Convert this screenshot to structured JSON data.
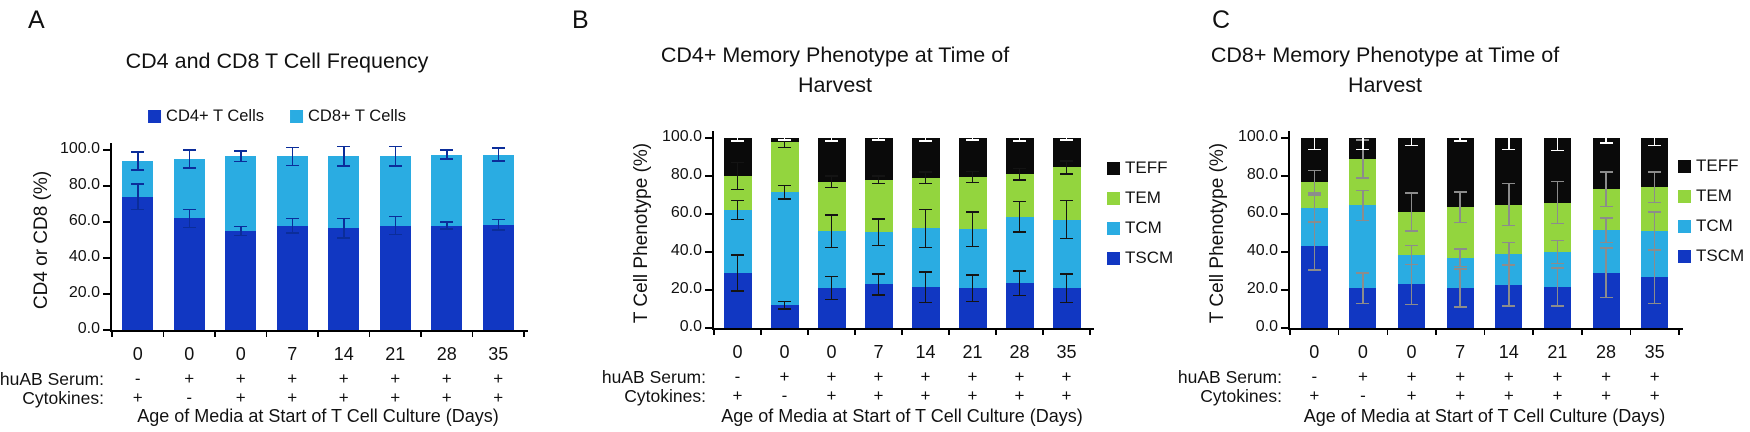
{
  "page": {
    "background": "#ffffff"
  },
  "chart_data": [
    {
      "type": "bar",
      "stacked": true,
      "panel_label": "A",
      "title": "CD4 and CD8 T Cell Frequency",
      "ylabel": "CD4 or CD8 (%)",
      "xlabel": "Age of Media at Start of T Cell Culture (Days)",
      "ylim": [
        0,
        100
      ],
      "ytick_labels": [
        "0.0",
        "20.0",
        "40.0",
        "60.0",
        "80.0",
        "100.0"
      ],
      "categories": [
        "0",
        "0",
        "0",
        "7",
        "14",
        "21",
        "28",
        "35"
      ],
      "condition_rows": [
        {
          "label": "huAB Serum:",
          "values": [
            "-",
            "+",
            "+",
            "+",
            "+",
            "+",
            "+",
            "+"
          ]
        },
        {
          "label": "Cytokines:",
          "values": [
            "+",
            "-",
            "+",
            "+",
            "+",
            "+",
            "+",
            "+"
          ]
        }
      ],
      "legend": {
        "position": "top",
        "entries": [
          {
            "label": "CD4+ T Cells",
            "color": "#1137c2"
          },
          {
            "label": "CD8+ T Cells",
            "color": "#2aace2"
          }
        ]
      },
      "series": [
        {
          "name": "CD4+ T Cells",
          "color": "#1137c2",
          "error_color": "#0b2d9a",
          "values": [
            74,
            62,
            55,
            58,
            56.5,
            58,
            58,
            58.5
          ],
          "errors": [
            7,
            5,
            2.5,
            4,
            5.5,
            5,
            2,
            3
          ]
        },
        {
          "name": "CD8+ T Cells",
          "color": "#2aace2",
          "error_color": "#0b2d9a",
          "values": [
            20,
            33,
            41.5,
            38.5,
            40,
            38.5,
            39.5,
            39
          ],
          "errors": [
            5,
            5,
            3,
            5,
            5.5,
            5.5,
            2.5,
            3.5
          ]
        }
      ]
    },
    {
      "type": "bar",
      "stacked": true,
      "panel_label": "B",
      "title": "CD4+ Memory Phenotype at Time of Harvest",
      "ylabel": "T Cell Phenotype (%)",
      "xlabel": "Age of Media at Start of T Cell Culture (Days)",
      "ylim": [
        0,
        100
      ],
      "ytick_labels": [
        "0.0",
        "20.0",
        "40.0",
        "60.0",
        "80.0",
        "100.0"
      ],
      "categories": [
        "0",
        "0",
        "0",
        "7",
        "14",
        "21",
        "28",
        "35"
      ],
      "condition_rows": [
        {
          "label": "huAB Serum:",
          "values": [
            "-",
            "+",
            "+",
            "+",
            "+",
            "+",
            "+",
            "+"
          ]
        },
        {
          "label": "Cytokines:",
          "values": [
            "+",
            "-",
            "+",
            "+",
            "+",
            "+",
            "+",
            "+"
          ]
        }
      ],
      "legend": {
        "position": "right",
        "entries": [
          {
            "label": "TEFF",
            "color": "#0a0a0a"
          },
          {
            "label": "TEM",
            "color": "#93d53e"
          },
          {
            "label": "TCM",
            "color": "#2aace2"
          },
          {
            "label": "TSCM",
            "color": "#1137c2"
          }
        ]
      },
      "series": [
        {
          "name": "TSCM",
          "color": "#1137c2",
          "error_color": "#141414",
          "values": [
            29,
            12,
            21,
            23,
            21.5,
            21,
            23.5,
            21
          ],
          "errors": [
            9.5,
            2,
            6,
            5.5,
            8,
            7,
            6.5,
            7.5
          ]
        },
        {
          "name": "TCM",
          "color": "#2aace2",
          "error_color": "#141414",
          "values": [
            33,
            59.5,
            30,
            27.5,
            31,
            31,
            35,
            36
          ],
          "errors": [
            5,
            3.5,
            8.5,
            7,
            10,
            9,
            8,
            10
          ]
        },
        {
          "name": "TEM",
          "color": "#93d53e",
          "error_color": "#141414",
          "values": [
            18,
            26.5,
            26,
            27.5,
            26.5,
            27.5,
            22.5,
            27.5
          ],
          "errors": [
            7,
            3,
            3,
            2,
            3,
            3,
            3,
            3.5
          ]
        },
        {
          "name": "TEFF",
          "color": "#0a0a0a",
          "error_color": "#ffffff",
          "values": [
            20,
            2,
            23,
            22,
            21,
            20.5,
            19,
            15.5
          ],
          "errors": [
            1.5,
            1,
            1.5,
            1,
            1.5,
            1,
            1.5,
            1
          ]
        }
      ]
    },
    {
      "type": "bar",
      "stacked": true,
      "panel_label": "C",
      "title": "CD8+ Memory Phenotype at Time of Harvest",
      "ylabel": "T Cell Phenotype (%)",
      "xlabel": "Age of Media at Start of T Cell Culture (Days)",
      "ylim": [
        0,
        100
      ],
      "ytick_labels": [
        "0.0",
        "20.0",
        "40.0",
        "60.0",
        "80.0",
        "100.0"
      ],
      "categories": [
        "0",
        "0",
        "0",
        "7",
        "14",
        "21",
        "28",
        "35"
      ],
      "condition_rows": [
        {
          "label": "huAB Serum:",
          "values": [
            "-",
            "+",
            "+",
            "+",
            "+",
            "+",
            "+",
            "+"
          ]
        },
        {
          "label": "Cytokines:",
          "values": [
            "+",
            "-",
            "+",
            "+",
            "+",
            "+",
            "+",
            "+"
          ]
        }
      ],
      "legend": {
        "position": "right",
        "entries": [
          {
            "label": "TEFF",
            "color": "#0a0a0a"
          },
          {
            "label": "TEM",
            "color": "#93d53e"
          },
          {
            "label": "TCM",
            "color": "#2aace2"
          },
          {
            "label": "TSCM",
            "color": "#1137c2"
          }
        ]
      },
      "series": [
        {
          "name": "TSCM",
          "color": "#1137c2",
          "error_color": "#8c8c8c",
          "values": [
            43,
            21,
            23,
            21,
            22.5,
            21.5,
            29,
            27
          ],
          "errors": [
            12.5,
            8,
            10.5,
            10,
            11,
            10,
            13,
            14
          ]
        },
        {
          "name": "TCM",
          "color": "#2aace2",
          "error_color": "#8c8c8c",
          "values": [
            20,
            43.5,
            15.5,
            16,
            16.5,
            18.5,
            22.5,
            24
          ],
          "errors": [
            7,
            8,
            5,
            4.5,
            6,
            6,
            6.5,
            10
          ]
        },
        {
          "name": "TEM",
          "color": "#93d53e",
          "error_color": "#8c8c8c",
          "values": [
            14,
            24.5,
            22.5,
            26.5,
            26,
            26,
            21.5,
            23
          ],
          "errors": [
            6,
            10,
            10,
            8,
            11,
            11,
            9,
            8
          ]
        },
        {
          "name": "TEFF",
          "color": "#0a0a0a",
          "error_color": "#ffffff",
          "values": [
            23,
            11,
            39,
            36.5,
            35,
            34,
            27,
            26
          ],
          "errors": [
            6,
            6,
            4,
            1.5,
            6,
            6.5,
            2.5,
            4
          ]
        }
      ]
    }
  ]
}
